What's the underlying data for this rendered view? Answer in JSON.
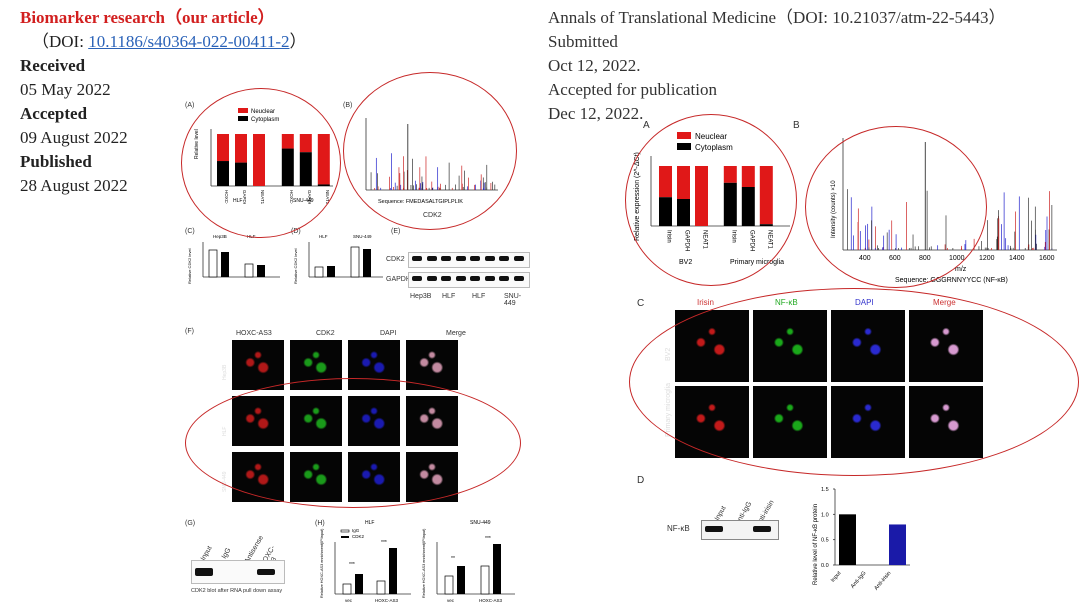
{
  "left": {
    "journal": "Biomarker research（our article）",
    "doi_prefix": "（DOI: ",
    "doi": "10.1186/s40364-022-00411-2",
    "doi_suffix": "）",
    "received_label": "Received",
    "received_date": "05 May 2022",
    "accepted_label": "Accepted",
    "accepted_date": "09 August 2022",
    "published_label": "Published",
    "published_date": "28 August 2022"
  },
  "right": {
    "journal": "Annals of Translational Medicine（DOI: 10.21037/atm-22-5443）",
    "submitted_label": "Submitted",
    "submitted_date": "Oct 12, 2022.",
    "accepted_label": "Accepted for publication",
    "accepted_date": "Dec 12, 2022."
  },
  "left_figure": {
    "panel_labels": [
      "(A)",
      "(B)",
      "(C)",
      "(D)",
      "(E)",
      "(F)",
      "(G)",
      "(H)"
    ],
    "legend": [
      "Neuclear",
      "Cytoplasm"
    ],
    "a_ylabel": "Relative level",
    "a_groups": [
      "HLF",
      "SNU-449"
    ],
    "a_bars": [
      "HOXC-AS3",
      "GAPDH",
      "NEAT1",
      "HOXC-AS3",
      "GAPDH",
      "NEAT1"
    ],
    "a_nuclear_fraction": [
      0.52,
      0.55,
      1.0,
      0.28,
      0.35,
      0.97
    ],
    "b_sequence": "Sequence: FMEDASALTGIPLPLIK",
    "b_protein": "CDK2",
    "c_ylabel": "Relative CDK2 level",
    "c_groups": [
      "Hep3B",
      "HLF"
    ],
    "c_xticks": [
      "siNC",
      "Anti-S",
      "siNC",
      "Anti-S"
    ],
    "d_ylabel": "Relative CDK2 level",
    "d_groups": [
      "HLF",
      "SNU-449"
    ],
    "d_xticks": [
      "Vec",
      "HOXC-AS3",
      "Vec",
      "HOXC-AS3"
    ],
    "e_rows": [
      "CDK2",
      "GAPDH"
    ],
    "e_cols": [
      "Hep3B",
      "HLF",
      "HLF",
      "SNU-449"
    ],
    "e_lanes": [
      "Vec",
      "HOXC-AS3",
      "siNC",
      "Anti-S",
      "Vec",
      "HOXC-AS3",
      "siNC",
      "Anti-S"
    ],
    "f_cols": [
      "HOXC-AS3",
      "CDK2",
      "DAPI",
      "Merge"
    ],
    "f_rows": [
      "Hep3B",
      "HLF",
      "SNU-449"
    ],
    "g_lanes": [
      "Input",
      "IgG",
      "Antisense",
      "HOXC-AS3"
    ],
    "g_caption": "CDK2 blot after RNA pull down assay",
    "h_titles": [
      "HLF",
      "SNU-449"
    ],
    "h_legend": [
      "IgG",
      "CDK2"
    ],
    "h_ylabel": "Relative HOXC-AS3 enrichment(IP/input)",
    "h_xticks": [
      "vec",
      "HOXC-AS3"
    ],
    "h_sig": [
      "***",
      "***",
      "**",
      "***"
    ]
  },
  "right_figure": {
    "panel_labels": [
      "A",
      "B",
      "C",
      "D"
    ],
    "legend": [
      "Neuclear",
      "Cytoplasm"
    ],
    "a_ylabel": "Relative expression (2^-ΔCt)",
    "a_bars": [
      "Irisin",
      "GAPDH",
      "NEAT1",
      "Irisin",
      "GAPDH",
      "NEAT1"
    ],
    "a_groups": [
      "BV2",
      "Primary microglia"
    ],
    "a_nuclear_fraction": [
      0.52,
      0.55,
      1.0,
      0.28,
      0.35,
      0.97
    ],
    "b_ylabel": "Intensity (counts) ×10",
    "b_xlabel": "m/z",
    "b_xticks": [
      "400",
      "600",
      "800",
      "1000",
      "1200",
      "1400",
      "1600"
    ],
    "b_sequence": "Sequence: GGGRNNYYCC (NF-κB)",
    "c_cols": [
      "Irisin",
      "NF-κB",
      "DAPI",
      "Merge"
    ],
    "c_rows": [
      "BV2",
      "Primary microglia"
    ],
    "d_blot_label": "NF-κB",
    "d_lanes": [
      "Input",
      "Anti-IgG",
      "Anti-irisin"
    ],
    "d_ylabel": "Relative level of NF-κB protein",
    "d_xticks": [
      "Input",
      "Anti-IgG",
      "Anti-irisin"
    ],
    "d_values": [
      1.0,
      0.0,
      0.8
    ],
    "d_ylim": [
      0,
      1.5
    ],
    "d_yticks": [
      "0.0",
      "0.5",
      "1.0",
      "1.5"
    ],
    "d_colors": [
      "#000000",
      "#000000",
      "#1a1aa8"
    ]
  }
}
